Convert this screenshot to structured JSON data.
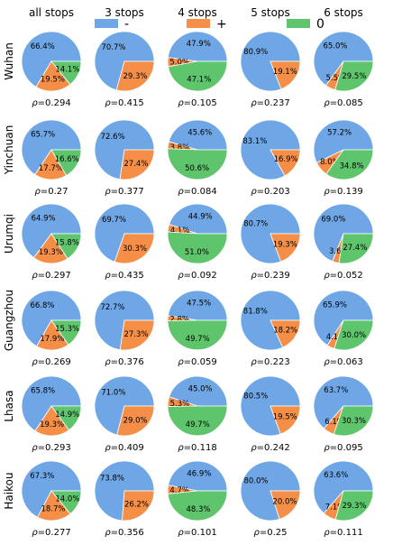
{
  "chart_data": {
    "type": "pie",
    "columns": [
      "all stops",
      "3 stops",
      "4 stops",
      "5 stops",
      "6 stops"
    ],
    "rows": [
      "Wuhan",
      "Yinchuan",
      "Urumqi",
      "Guangzhou",
      "Lhasa",
      "Haikou"
    ],
    "legend": [
      {
        "name": "-",
        "color": "#6ea6e6"
      },
      {
        "name": "+",
        "color": "#f58f47"
      },
      {
        "name": "0",
        "color": "#5fc56c"
      }
    ],
    "rho_symbol": "ρ",
    "panels": [
      [
        {
          "values": [
            66.4,
            19.5,
            14.1
          ],
          "labels": [
            "66.4%",
            "19.5%",
            "14.1%"
          ],
          "rho": "=0.294"
        },
        {
          "values": [
            70.7,
            29.3,
            0
          ],
          "labels": [
            "70.7%",
            "29.3%",
            ""
          ],
          "rho": "=0.415"
        },
        {
          "values": [
            47.9,
            5.0,
            47.1
          ],
          "labels": [
            "47.9%",
            "5.0%",
            "47.1%"
          ],
          "rho": "=0.105"
        },
        {
          "values": [
            80.9,
            19.1,
            0
          ],
          "labels": [
            "80.9%",
            "19.1%",
            ""
          ],
          "rho": "=0.237"
        },
        {
          "values": [
            65.0,
            5.5,
            29.5
          ],
          "labels": [
            "65.0%",
            "5.5%",
            "29.5%"
          ],
          "rho": "=0.085"
        }
      ],
      [
        {
          "values": [
            65.7,
            17.7,
            16.6
          ],
          "labels": [
            "65.7%",
            "17.7%",
            "16.6%"
          ],
          "rho": "=0.27"
        },
        {
          "values": [
            72.6,
            27.4,
            0
          ],
          "labels": [
            "72.6%",
            "27.4%",
            ""
          ],
          "rho": "=0.377"
        },
        {
          "values": [
            45.6,
            3.8,
            50.6
          ],
          "labels": [
            "45.6%",
            "3.8%",
            "50.6%"
          ],
          "rho": "=0.084"
        },
        {
          "values": [
            83.1,
            16.9,
            0
          ],
          "labels": [
            "83.1%",
            "16.9%",
            ""
          ],
          "rho": "=0.203"
        },
        {
          "values": [
            57.2,
            8.0,
            34.8
          ],
          "labels": [
            "57.2%",
            "8.0%",
            "34.8%"
          ],
          "rho": "=0.139"
        }
      ],
      [
        {
          "values": [
            64.9,
            19.3,
            15.8
          ],
          "labels": [
            "64.9%",
            "19.3%",
            "15.8%"
          ],
          "rho": "=0.297"
        },
        {
          "values": [
            69.7,
            30.3,
            0
          ],
          "labels": [
            "69.7%",
            "30.3%",
            ""
          ],
          "rho": "=0.435"
        },
        {
          "values": [
            44.9,
            4.1,
            51.0
          ],
          "labels": [
            "44.9%",
            "4.1%",
            "51.0%"
          ],
          "rho": "=0.092"
        },
        {
          "values": [
            80.7,
            19.3,
            0
          ],
          "labels": [
            "80.7%",
            "19.3%",
            ""
          ],
          "rho": "=0.239"
        },
        {
          "values": [
            69.0,
            3.6,
            27.4
          ],
          "labels": [
            "69.0%",
            "3.6%",
            "27.4%"
          ],
          "rho": "=0.052"
        }
      ],
      [
        {
          "values": [
            66.8,
            17.9,
            15.3
          ],
          "labels": [
            "66.8%",
            "17.9%",
            "15.3%"
          ],
          "rho": "=0.269"
        },
        {
          "values": [
            72.7,
            27.3,
            0
          ],
          "labels": [
            "72.7%",
            "27.3%",
            ""
          ],
          "rho": "=0.376"
        },
        {
          "values": [
            47.5,
            2.8,
            49.7
          ],
          "labels": [
            "47.5%",
            "2.8%",
            "49.7%"
          ],
          "rho": "=0.059"
        },
        {
          "values": [
            81.8,
            18.2,
            0
          ],
          "labels": [
            "81.8%",
            "18.2%",
            ""
          ],
          "rho": "=0.223"
        },
        {
          "values": [
            65.9,
            4.1,
            30.0
          ],
          "labels": [
            "65.9%",
            "4.1%",
            "30.0%"
          ],
          "rho": "=0.063"
        }
      ],
      [
        {
          "values": [
            65.8,
            19.3,
            14.9
          ],
          "labels": [
            "65.8%",
            "19.3%",
            "14.9%"
          ],
          "rho": "=0.293"
        },
        {
          "values": [
            71.0,
            29.0,
            0
          ],
          "labels": [
            "71.0%",
            "29.0%",
            ""
          ],
          "rho": "=0.409"
        },
        {
          "values": [
            45.0,
            5.3,
            49.7
          ],
          "labels": [
            "45.0%",
            "5.3%",
            "49.7%"
          ],
          "rho": "=0.118"
        },
        {
          "values": [
            80.5,
            19.5,
            0
          ],
          "labels": [
            "80.5%",
            "19.5%",
            ""
          ],
          "rho": "=0.242"
        },
        {
          "values": [
            63.7,
            6.1,
            30.3
          ],
          "labels": [
            "63.7%",
            "6.1%",
            "30.3%"
          ],
          "rho": "=0.095"
        }
      ],
      [
        {
          "values": [
            67.3,
            18.7,
            14.0
          ],
          "labels": [
            "67.3%",
            "18.7%",
            "14.0%"
          ],
          "rho": "=0.277"
        },
        {
          "values": [
            73.8,
            26.2,
            0
          ],
          "labels": [
            "73.8%",
            "26.2%",
            ""
          ],
          "rho": "=0.356"
        },
        {
          "values": [
            46.9,
            4.7,
            48.3
          ],
          "labels": [
            "46.9%",
            "4.7%",
            "48.3%"
          ],
          "rho": "=0.101"
        },
        {
          "values": [
            80.0,
            20.0,
            0
          ],
          "labels": [
            "80.0%",
            "20.0%",
            ""
          ],
          "rho": "=0.25"
        },
        {
          "values": [
            63.6,
            7.1,
            29.3
          ],
          "labels": [
            "63.6%",
            "7.1%",
            "29.3%"
          ],
          "rho": "=0.111"
        }
      ]
    ]
  }
}
